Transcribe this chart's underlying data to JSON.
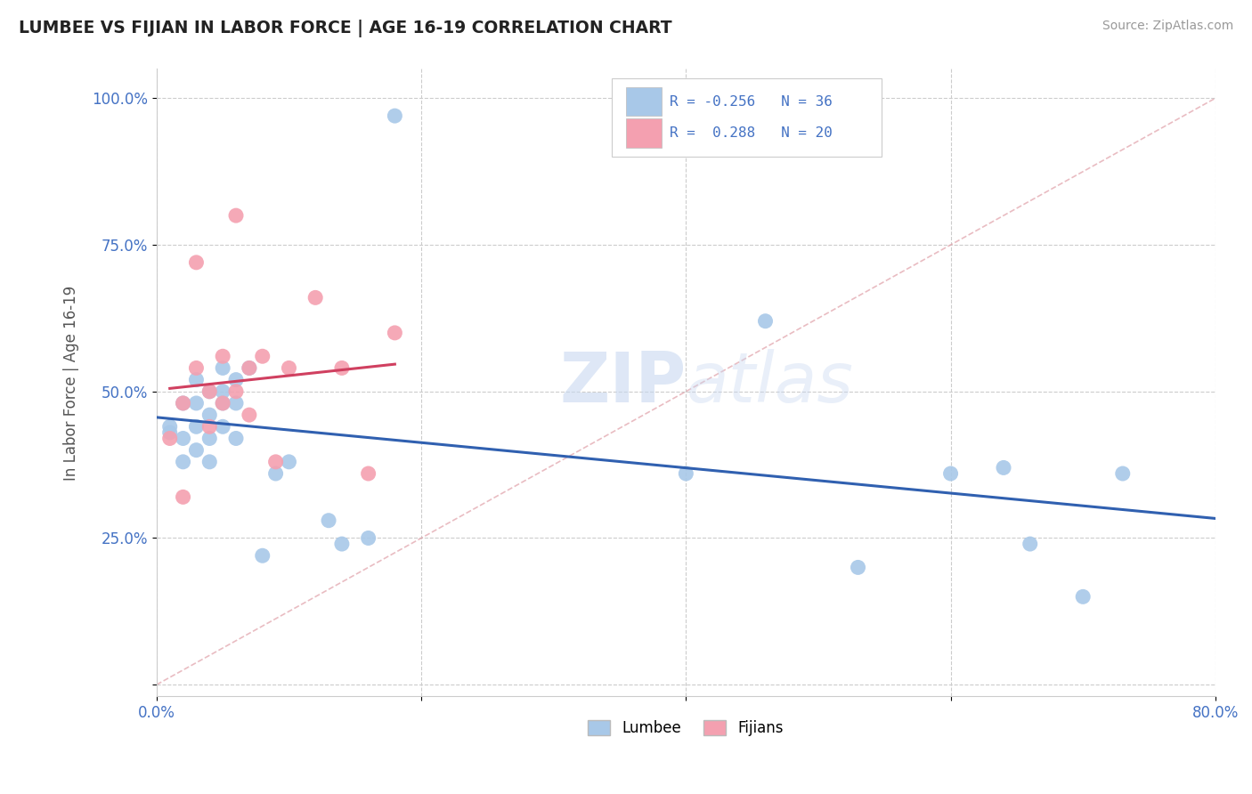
{
  "title": "LUMBEE VS FIJIAN IN LABOR FORCE | AGE 16-19 CORRELATION CHART",
  "source_text": "Source: ZipAtlas.com",
  "ylabel": "In Labor Force | Age 16-19",
  "xlim": [
    0.0,
    0.8
  ],
  "ylim": [
    -0.02,
    1.05
  ],
  "x_ticks": [
    0.0,
    0.2,
    0.4,
    0.6,
    0.8
  ],
  "y_ticks": [
    0.0,
    0.25,
    0.5,
    0.75,
    1.0
  ],
  "lumbee_color": "#a8c8e8",
  "fijian_color": "#f4a0b0",
  "lumbee_line_color": "#3060b0",
  "fijian_line_color": "#d04060",
  "diag_line_color": "#e0a0a8",
  "grid_color": "#cccccc",
  "R_lumbee": -0.256,
  "N_lumbee": 36,
  "R_fijian": 0.288,
  "N_fijian": 20,
  "lumbee_x": [
    0.01,
    0.01,
    0.02,
    0.02,
    0.02,
    0.03,
    0.03,
    0.03,
    0.03,
    0.04,
    0.04,
    0.04,
    0.04,
    0.05,
    0.05,
    0.05,
    0.05,
    0.06,
    0.06,
    0.06,
    0.07,
    0.08,
    0.09,
    0.1,
    0.13,
    0.14,
    0.16,
    0.18,
    0.4,
    0.46,
    0.53,
    0.6,
    0.64,
    0.66,
    0.7,
    0.73
  ],
  "lumbee_y": [
    0.43,
    0.44,
    0.38,
    0.42,
    0.48,
    0.4,
    0.44,
    0.48,
    0.52,
    0.38,
    0.42,
    0.46,
    0.5,
    0.44,
    0.48,
    0.5,
    0.54,
    0.42,
    0.48,
    0.52,
    0.54,
    0.22,
    0.36,
    0.38,
    0.28,
    0.24,
    0.25,
    0.97,
    0.36,
    0.62,
    0.2,
    0.36,
    0.37,
    0.24,
    0.15,
    0.36
  ],
  "fijian_x": [
    0.01,
    0.02,
    0.02,
    0.03,
    0.03,
    0.04,
    0.04,
    0.05,
    0.05,
    0.06,
    0.06,
    0.07,
    0.07,
    0.08,
    0.09,
    0.1,
    0.12,
    0.14,
    0.16,
    0.18
  ],
  "fijian_y": [
    0.42,
    0.32,
    0.48,
    0.54,
    0.72,
    0.44,
    0.5,
    0.48,
    0.56,
    0.5,
    0.8,
    0.46,
    0.54,
    0.56,
    0.38,
    0.54,
    0.66,
    0.54,
    0.36,
    0.6
  ],
  "watermark_zip": "ZIP",
  "watermark_atlas": "atlas"
}
